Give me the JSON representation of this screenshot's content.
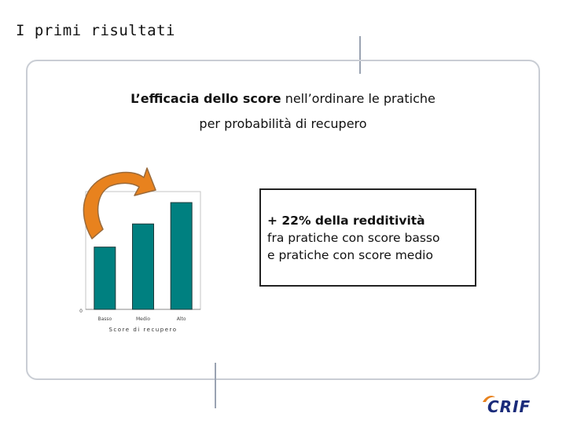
{
  "slide": {
    "title": "I primi risultati",
    "subtitle": {
      "bold": "L’efficacia dello score",
      "rest": " nell’ordinare le pratiche",
      "line2": "per probabilità di recupero"
    }
  },
  "callout": {
    "headline": "+ 22% della redditività",
    "line2": "fra pratiche con score basso",
    "line3": "e pratiche con score medio"
  },
  "chart_data": {
    "type": "bar",
    "categories": [
      "Basso",
      "Medio",
      "Alto"
    ],
    "values": [
      35,
      48,
      60
    ],
    "xlabel": "Score di recupero",
    "ylabel": "",
    "ytick": "0",
    "ylim": [
      0,
      60
    ],
    "bar_color": "#008080"
  },
  "logo": {
    "text": "CRIF",
    "color": "#1a2b7a",
    "accent": "#e8821e"
  },
  "colors": {
    "frame": "#c9cdd4",
    "divider": "#9aa3b2",
    "arrow_fill": "#e8821e",
    "arrow_stroke": "#9a6a3a"
  }
}
